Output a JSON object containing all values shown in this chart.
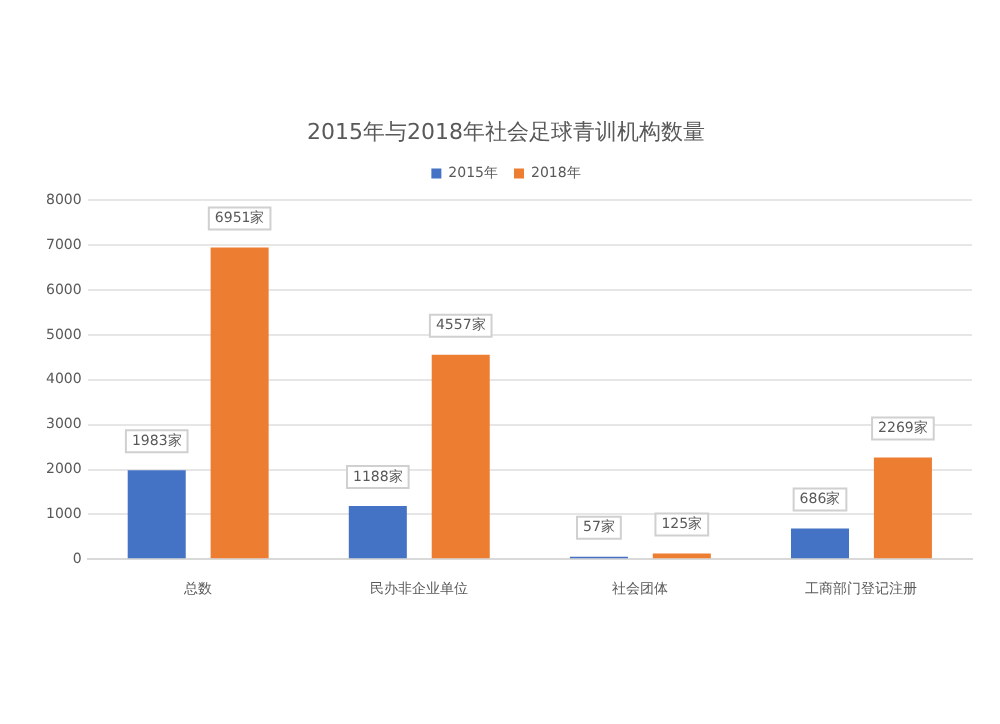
{
  "chart_data": {
    "type": "bar",
    "title": "2015年与2018年社会足球青训机构数量",
    "categories": [
      "总数",
      "民办非企业单位",
      "社会团体",
      "工商部门登记注册"
    ],
    "series": [
      {
        "name": "2015年",
        "color": "#4472c4",
        "values": [
          1983,
          1188,
          57,
          686
        ],
        "value_labels": [
          "1983家",
          "1188家",
          "57家",
          "686家"
        ]
      },
      {
        "name": "2018年",
        "color": "#ed7d31",
        "values": [
          6951,
          4557,
          125,
          2269
        ],
        "value_labels": [
          "6951家",
          "4557家",
          "125家",
          "2269家"
        ]
      }
    ],
    "ylim": [
      0,
      8000
    ],
    "yticks": [
      0,
      1000,
      2000,
      3000,
      4000,
      5000,
      6000,
      7000,
      8000
    ],
    "grid": "y",
    "legend": "top"
  }
}
